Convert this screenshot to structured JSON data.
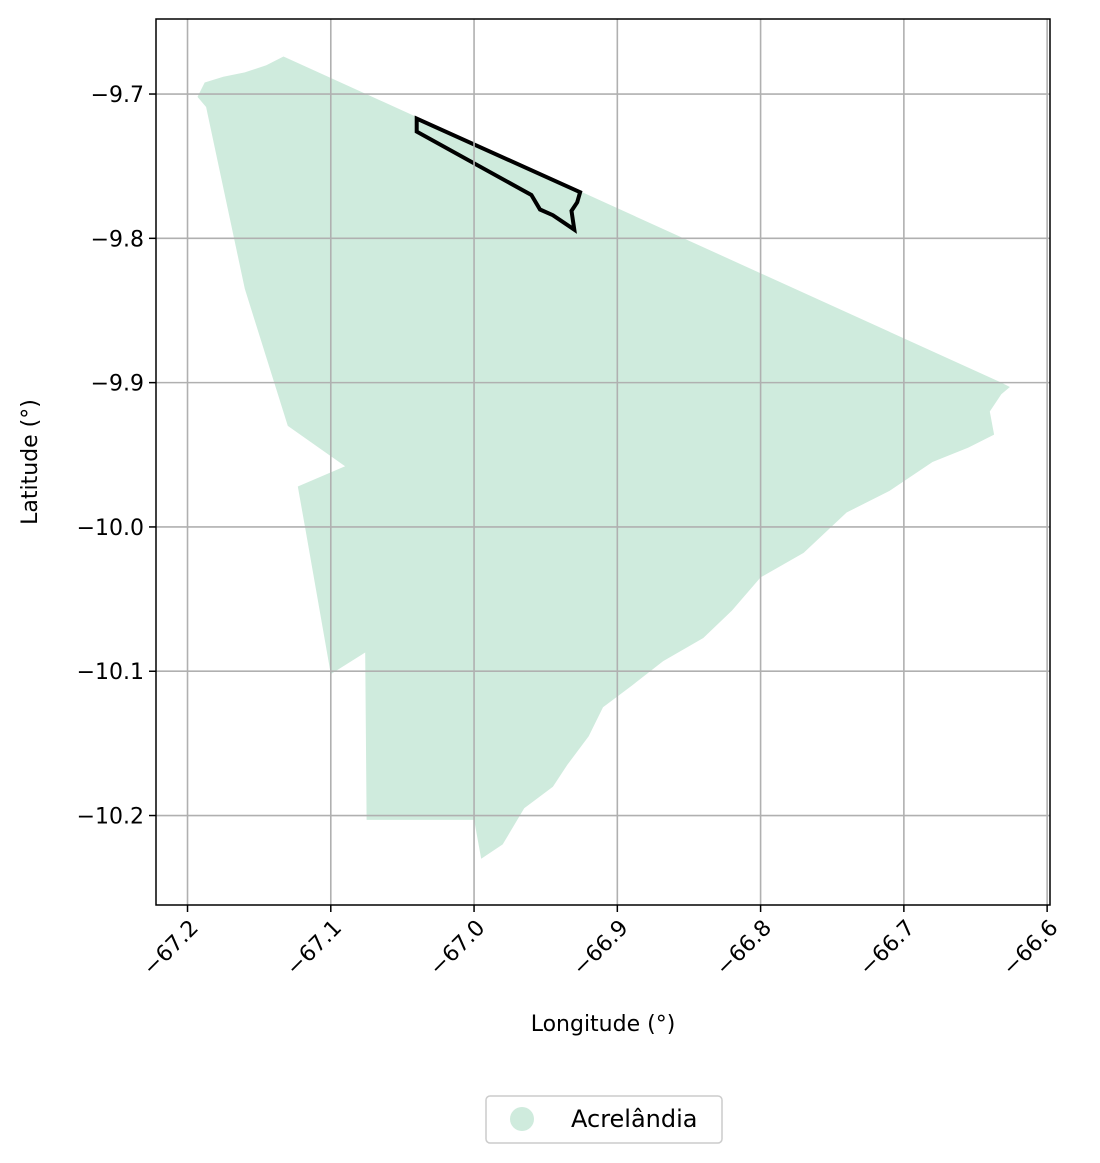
{
  "chart_data": {
    "type": "map",
    "xlabel": "Longitude (°)",
    "ylabel": "Latitude (°)",
    "xlim": [
      -67.222,
      -66.598
    ],
    "ylim": [
      -10.262,
      -9.648
    ],
    "xticks": [
      -67.2,
      -67.1,
      -67.0,
      -66.9,
      -66.8,
      -66.7,
      -66.6
    ],
    "xtick_labels": [
      "−67.2",
      "−67.1",
      "−67.0",
      "−66.9",
      "−66.8",
      "−66.7",
      "−66.6"
    ],
    "yticks": [
      -9.7,
      -9.8,
      -9.9,
      -10.0,
      -10.1,
      -10.2
    ],
    "ytick_labels": [
      "−9.7",
      "−9.8",
      "−9.9",
      "−10.0",
      "−10.1",
      "−10.2"
    ],
    "grid": true,
    "legend_position": "bottom-center",
    "legend": [
      {
        "label": "Acrelândia",
        "color": "#cfebdd"
      }
    ],
    "regions": [
      {
        "name": "Acrelândia",
        "fill": "#cfebdd",
        "polygon": [
          [
            -67.133,
            -9.674
          ],
          [
            -67.145,
            -9.68
          ],
          [
            -67.16,
            -9.685
          ],
          [
            -67.175,
            -9.688
          ],
          [
            -67.188,
            -9.692
          ],
          [
            -67.193,
            -9.702
          ],
          [
            -67.187,
            -9.709
          ],
          [
            -67.16,
            -9.835
          ],
          [
            -67.13,
            -9.93
          ],
          [
            -67.09,
            -9.958
          ],
          [
            -67.123,
            -9.972
          ],
          [
            -67.118,
            -10.0
          ],
          [
            -67.1,
            -10.102
          ],
          [
            -67.076,
            -10.087
          ],
          [
            -67.075,
            -10.203
          ],
          [
            -67.0,
            -10.203
          ],
          [
            -66.995,
            -10.23
          ],
          [
            -66.98,
            -10.22
          ],
          [
            -66.965,
            -10.195
          ],
          [
            -66.945,
            -10.18
          ],
          [
            -66.935,
            -10.165
          ],
          [
            -66.92,
            -10.145
          ],
          [
            -66.91,
            -10.125
          ],
          [
            -66.89,
            -10.11
          ],
          [
            -66.868,
            -10.093
          ],
          [
            -66.84,
            -10.077
          ],
          [
            -66.82,
            -10.058
          ],
          [
            -66.8,
            -10.035
          ],
          [
            -66.77,
            -10.018
          ],
          [
            -66.74,
            -9.99
          ],
          [
            -66.71,
            -9.975
          ],
          [
            -66.68,
            -9.955
          ],
          [
            -66.655,
            -9.945
          ],
          [
            -66.637,
            -9.936
          ],
          [
            -66.64,
            -9.92
          ],
          [
            -66.632,
            -9.908
          ],
          [
            -66.626,
            -9.903
          ],
          [
            -66.632,
            -9.9
          ],
          [
            -67.133,
            -9.674
          ]
        ]
      }
    ],
    "outlines": [
      {
        "stroke": "#000000",
        "polygon": [
          [
            -67.04,
            -9.717
          ],
          [
            -67.04,
            -9.726
          ],
          [
            -66.96,
            -9.77
          ],
          [
            -66.954,
            -9.78
          ],
          [
            -66.945,
            -9.784
          ],
          [
            -66.93,
            -9.794
          ],
          [
            -66.932,
            -9.781
          ],
          [
            -66.928,
            -9.775
          ],
          [
            -66.926,
            -9.768
          ],
          [
            -67.04,
            -9.717
          ]
        ]
      }
    ]
  }
}
